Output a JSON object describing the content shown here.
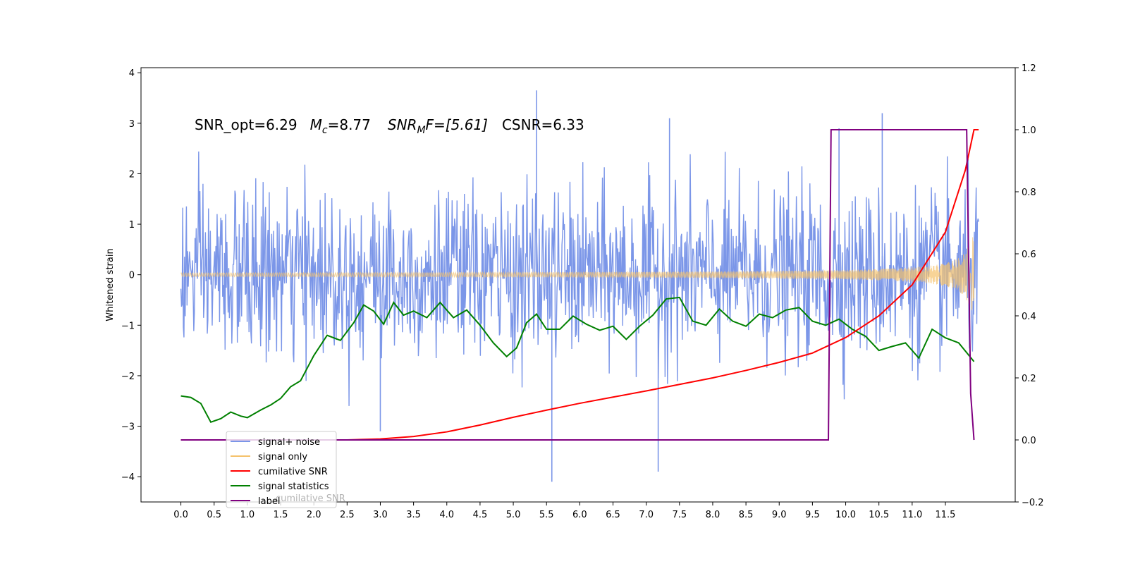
{
  "chart_data": {
    "type": "line",
    "title": "",
    "xlabel": "",
    "ylabel": "Whitened strain",
    "xlim": [
      -0.6,
      12.55
    ],
    "ylim": [
      -4.5,
      4.1
    ],
    "y2lim": [
      -0.2,
      1.2
    ],
    "grid": false,
    "legend_position": "lower-left",
    "x_ticks": [
      "0.0",
      "0.5",
      "1.0",
      "1.5",
      "2.0",
      "2.5",
      "3.0",
      "3.5",
      "4.0",
      "4.5",
      "5.0",
      "5.5",
      "6.0",
      "6.5",
      "7.0",
      "7.5",
      "8.0",
      "8.5",
      "9.0",
      "9.5",
      "10.0",
      "10.5",
      "11.0",
      "11.5"
    ],
    "y_ticks": [
      -4,
      -3,
      -2,
      -1,
      0,
      1,
      2,
      3,
      4
    ],
    "y2_ticks": [
      "−0.2",
      "0.0",
      "0.2",
      "0.4",
      "0.6",
      "0.8",
      "1.0",
      "1.2"
    ],
    "annotation": {
      "snr_opt": "SNR_opt=6.29",
      "mc_prefix": "M",
      "mc_sub": "c",
      "mc_value": "=8.77",
      "snrmf_prefix": "SNR",
      "snrmf_sub": "M",
      "snrmf_value": "F=[5.61]",
      "csnr": "CSNR=6.33"
    },
    "series": [
      {
        "name": "signal+ noise",
        "axis": "left",
        "color": "#7b96e8",
        "envelope": {
          "x": [
            0,
            12
          ],
          "low": -2.6,
          "high": 2.6
        },
        "spikes": [
          [
            5.35,
            3.65
          ],
          [
            5.58,
            -4.1
          ],
          [
            7.18,
            -3.9
          ],
          [
            10.55,
            3.2
          ],
          [
            7.35,
            3.1
          ],
          [
            3.0,
            -3.1
          ],
          [
            9.9,
            2.9
          ]
        ]
      },
      {
        "name": "signal only",
        "axis": "left",
        "color": "#f5c26b",
        "chirp": {
          "x_start": 0,
          "x_end": 11.93,
          "amp_start": 0.01,
          "amp_end": 0.75
        }
      },
      {
        "name": "cumilative SNR",
        "axis": "right",
        "color": "#ff0000",
        "x": [
          0,
          2.5,
          3.0,
          3.5,
          4.0,
          4.5,
          5.0,
          5.5,
          6.0,
          6.5,
          7.0,
          7.5,
          8.0,
          8.5,
          9.0,
          9.5,
          10.0,
          10.5,
          11.0,
          11.5,
          11.8,
          11.93,
          12.0
        ],
        "values": [
          0.0,
          0.0,
          0.003,
          0.011,
          0.026,
          0.048,
          0.073,
          0.096,
          0.118,
          0.138,
          0.158,
          0.179,
          0.2,
          0.224,
          0.25,
          0.28,
          0.33,
          0.4,
          0.5,
          0.67,
          0.87,
          1.0,
          1.0
        ]
      },
      {
        "name": "signal statistics",
        "axis": "left",
        "color": "#008000",
        "x": [
          0,
          0.15,
          0.3,
          0.45,
          0.6,
          0.75,
          0.9,
          1.0,
          1.2,
          1.35,
          1.5,
          1.65,
          1.8,
          2.0,
          2.2,
          2.4,
          2.6,
          2.75,
          2.9,
          3.05,
          3.2,
          3.35,
          3.5,
          3.7,
          3.9,
          4.1,
          4.3,
          4.5,
          4.7,
          4.9,
          5.05,
          5.2,
          5.35,
          5.5,
          5.7,
          5.9,
          6.1,
          6.3,
          6.5,
          6.7,
          6.9,
          7.1,
          7.3,
          7.5,
          7.7,
          7.9,
          8.1,
          8.3,
          8.5,
          8.7,
          8.9,
          9.1,
          9.3,
          9.5,
          9.7,
          9.9,
          10.1,
          10.3,
          10.5,
          10.7,
          10.9,
          11.1,
          11.3,
          11.5,
          11.7,
          11.93
        ],
        "values": [
          -2.4,
          -2.43,
          -2.55,
          -2.92,
          -2.85,
          -2.72,
          -2.8,
          -2.83,
          -2.68,
          -2.58,
          -2.45,
          -2.22,
          -2.1,
          -1.6,
          -1.2,
          -1.3,
          -0.95,
          -0.6,
          -0.72,
          -0.98,
          -0.55,
          -0.8,
          -0.72,
          -0.85,
          -0.55,
          -0.85,
          -0.7,
          -1.0,
          -1.35,
          -1.62,
          -1.45,
          -0.95,
          -0.78,
          -1.08,
          -1.08,
          -0.82,
          -0.98,
          -1.1,
          -1.02,
          -1.28,
          -1.02,
          -0.8,
          -0.48,
          -0.45,
          -0.92,
          -1.0,
          -0.68,
          -0.92,
          -1.02,
          -0.78,
          -0.85,
          -0.7,
          -0.65,
          -0.92,
          -1.0,
          -0.88,
          -1.08,
          -1.22,
          -1.5,
          -1.42,
          -1.35,
          -1.65,
          -1.08,
          -1.25,
          -1.35,
          -1.72
        ]
      },
      {
        "name": "label",
        "axis": "right",
        "color": "#800080",
        "x": [
          0,
          9.74,
          9.78,
          11.82,
          11.88,
          11.93
        ],
        "values": [
          0,
          0,
          1,
          1,
          0.15,
          0
        ]
      }
    ],
    "legend_entries": [
      "signal+ noise",
      "signal only",
      "cumilative SNR",
      "signal statistics",
      "label"
    ],
    "legend_ghost_text": "cumilative SNR"
  }
}
